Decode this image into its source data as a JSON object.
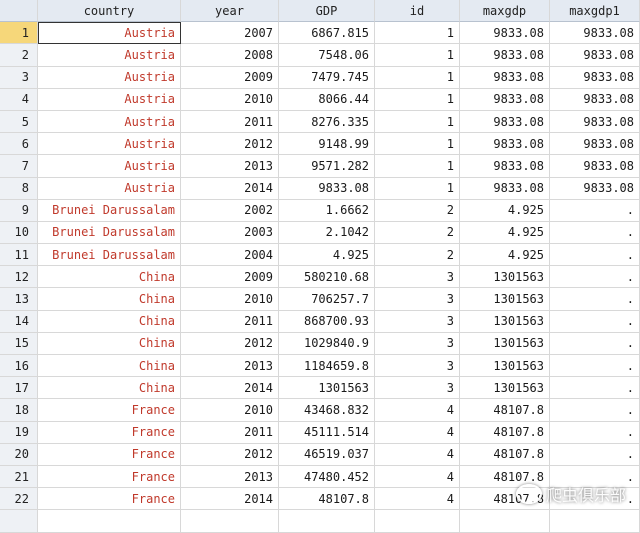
{
  "columns": [
    "country",
    "year",
    "GDP",
    "id",
    "maxgdp",
    "maxgdp1"
  ],
  "rows": [
    [
      "1",
      "Austria",
      "2007",
      "6867.815",
      "1",
      "9833.08",
      "9833.08"
    ],
    [
      "2",
      "Austria",
      "2008",
      "7548.06",
      "1",
      "9833.08",
      "9833.08"
    ],
    [
      "3",
      "Austria",
      "2009",
      "7479.745",
      "1",
      "9833.08",
      "9833.08"
    ],
    [
      "4",
      "Austria",
      "2010",
      "8066.44",
      "1",
      "9833.08",
      "9833.08"
    ],
    [
      "5",
      "Austria",
      "2011",
      "8276.335",
      "1",
      "9833.08",
      "9833.08"
    ],
    [
      "6",
      "Austria",
      "2012",
      "9148.99",
      "1",
      "9833.08",
      "9833.08"
    ],
    [
      "7",
      "Austria",
      "2013",
      "9571.282",
      "1",
      "9833.08",
      "9833.08"
    ],
    [
      "8",
      "Austria",
      "2014",
      "9833.08",
      "1",
      "9833.08",
      "9833.08"
    ],
    [
      "9",
      "Brunei Darussalam",
      "2002",
      "1.6662",
      "2",
      "4.925",
      "."
    ],
    [
      "10",
      "Brunei Darussalam",
      "2003",
      "2.1042",
      "2",
      "4.925",
      "."
    ],
    [
      "11",
      "Brunei Darussalam",
      "2004",
      "4.925",
      "2",
      "4.925",
      "."
    ],
    [
      "12",
      "China",
      "2009",
      "580210.68",
      "3",
      "1301563",
      "."
    ],
    [
      "13",
      "China",
      "2010",
      "706257.7",
      "3",
      "1301563",
      "."
    ],
    [
      "14",
      "China",
      "2011",
      "868700.93",
      "3",
      "1301563",
      "."
    ],
    [
      "15",
      "China",
      "2012",
      "1029840.9",
      "3",
      "1301563",
      "."
    ],
    [
      "16",
      "China",
      "2013",
      "1184659.8",
      "3",
      "1301563",
      "."
    ],
    [
      "17",
      "China",
      "2014",
      "1301563",
      "3",
      "1301563",
      "."
    ],
    [
      "18",
      "France",
      "2010",
      "43468.832",
      "4",
      "48107.8",
      "."
    ],
    [
      "19",
      "France",
      "2011",
      "45111.514",
      "4",
      "48107.8",
      "."
    ],
    [
      "20",
      "France",
      "2012",
      "46519.037",
      "4",
      "48107.8",
      "."
    ],
    [
      "21",
      "France",
      "2013",
      "47480.452",
      "4",
      "48107.8",
      "."
    ],
    [
      "22",
      "France",
      "2014",
      "48107.8",
      "4",
      "48107.8",
      "."
    ]
  ],
  "selected_row": "1",
  "watermark": {
    "text": "爬虫俱乐部",
    "icon": "wechat-icon"
  },
  "colors": {
    "string_values": "#c0392b",
    "header_bg": "#e4eaf2",
    "active_row": "#f6d77a"
  }
}
